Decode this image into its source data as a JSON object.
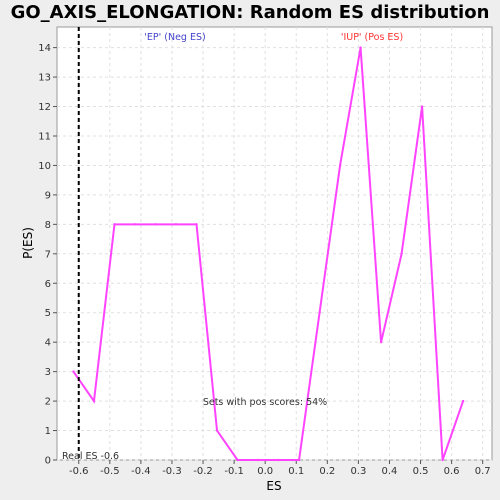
{
  "chart_data": {
    "type": "line",
    "title": "GO_AXIS_ELONGATION: Random ES distribution",
    "xlabel": "ES",
    "ylabel": "P(ES)",
    "xlim": [
      -0.67,
      0.73
    ],
    "ylim": [
      0,
      14.7
    ],
    "x_ticks": [
      -0.6,
      -0.5,
      -0.4,
      -0.3,
      -0.2,
      -0.1,
      0.0,
      0.1,
      0.2,
      0.3,
      0.4,
      0.5,
      0.6,
      0.7
    ],
    "x_tick_labels": [
      "-0.6",
      "-0.5",
      "-0.4",
      "-0.3",
      "-0.2",
      "-0.1",
      "0.0",
      "0.1",
      "0.2",
      "0.3",
      "0.4",
      "0.5",
      "0.6",
      "0.7"
    ],
    "y_ticks": [
      0,
      1,
      2,
      3,
      4,
      5,
      6,
      7,
      8,
      9,
      10,
      11,
      12,
      13,
      14
    ],
    "grid": true,
    "series": [
      {
        "color": "#ff44ff",
        "x": [
          -0.617,
          -0.551,
          -0.485,
          -0.419,
          -0.353,
          -0.287,
          -0.221,
          -0.155,
          -0.089,
          -0.023,
          0.043,
          0.109,
          0.175,
          0.241,
          0.307,
          0.373,
          0.439,
          0.505,
          0.571,
          0.637
        ],
        "y": [
          3,
          2,
          8,
          8,
          8,
          8,
          8,
          1,
          0,
          0,
          0,
          0,
          5,
          10,
          14,
          4,
          7,
          12,
          0,
          2
        ]
      }
    ],
    "real_es": -0.6,
    "annotations": {
      "neg_label": "'EP' (Neg ES)",
      "pos_label": "'IUP' (Pos ES)",
      "pos_scores": "Sets with pos scores: 54%",
      "real_es_label": "Real ES -0.6"
    },
    "colors": {
      "line": "#ff44ff",
      "neg_label": "#4444cc",
      "pos_label": "#ff3333",
      "grid": "#e0e0e0",
      "background": "#ffffff"
    }
  }
}
